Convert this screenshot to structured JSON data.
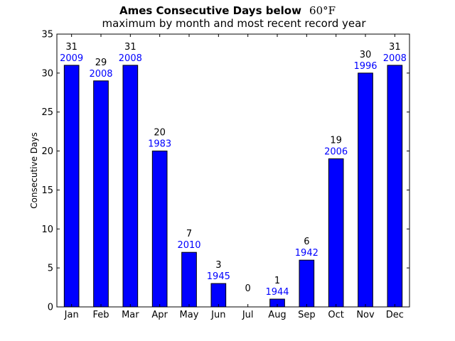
{
  "chart_data": {
    "type": "bar",
    "title": {
      "main": "Ames Consecutive Days below",
      "unit": "60°F",
      "subtitle": "maximum by month and most recent record year"
    },
    "ylabel": "Consecutive Days",
    "xlabel": "",
    "ylim": [
      0,
      35
    ],
    "yticks": [
      0,
      5,
      10,
      15,
      20,
      25,
      30,
      35
    ],
    "categories": [
      "Jan",
      "Feb",
      "Mar",
      "Apr",
      "May",
      "Jun",
      "Jul",
      "Aug",
      "Sep",
      "Oct",
      "Nov",
      "Dec"
    ],
    "values": [
      31,
      29,
      31,
      20,
      7,
      3,
      0,
      1,
      6,
      19,
      30,
      31
    ],
    "years": [
      "2009",
      "2008",
      "2008",
      "1983",
      "2010",
      "1945",
      "",
      "1944",
      "1942",
      "2006",
      "1996",
      "2008"
    ],
    "grid": false,
    "legend": "none",
    "colors": {
      "bar_fill": "#0000ff",
      "bar_edge": "#000000",
      "year_text": "#0000ff",
      "value_text": "#000000"
    }
  }
}
